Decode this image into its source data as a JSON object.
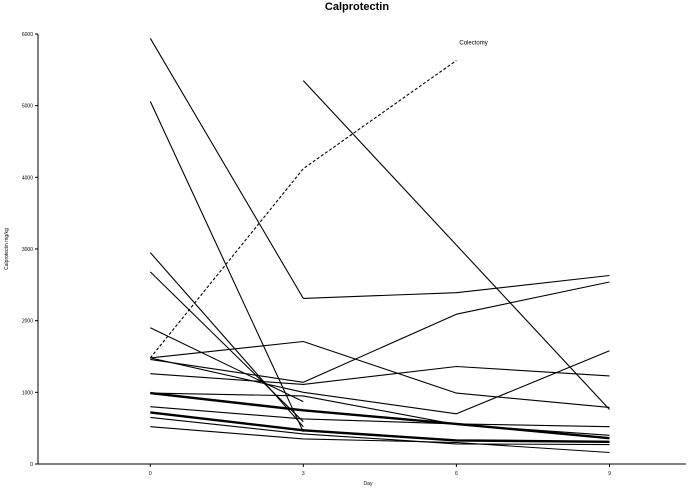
{
  "chart_data": {
    "type": "line",
    "title": "Calprotectin",
    "xlabel": "Day",
    "ylabel": "Calprotectin mg/kg",
    "x": [
      0,
      3,
      6,
      9
    ],
    "x_tick_labels": [
      "0",
      "3",
      "6",
      "9"
    ],
    "xlim": [
      -2.2,
      10.5
    ],
    "ylim": [
      0,
      6000
    ],
    "y_ticks": [
      0,
      1000,
      2000,
      3000,
      4000,
      5000,
      6000
    ],
    "y_tick_labels": [
      "0",
      "1000",
      "2000",
      "3000",
      "4000",
      "5000",
      "6000"
    ],
    "grid": false,
    "legend": "none",
    "line_color": "#000000",
    "annotations": [
      {
        "text": "Colectomy",
        "x": 6.0,
        "y": 5880
      }
    ],
    "series": [
      {
        "values": [
          5940,
          2310,
          null,
          null
        ],
        "dashed": false,
        "bold": false
      },
      {
        "values": [
          5060,
          450,
          null,
          null
        ],
        "dashed": false,
        "bold": false
      },
      {
        "values": [
          null,
          5350,
          null,
          760
        ],
        "dashed": false,
        "bold": false
      },
      {
        "values": [
          1480,
          4120,
          5630,
          null
        ],
        "dashed": true,
        "bold": false
      },
      {
        "values": [
          null,
          2310,
          2390,
          2630
        ],
        "dashed": false,
        "bold": false
      },
      {
        "values": [
          2950,
          520,
          null,
          null
        ],
        "dashed": false,
        "bold": false
      },
      {
        "values": [
          2680,
          590,
          null,
          null
        ],
        "dashed": false,
        "bold": false
      },
      {
        "values": [
          1900,
          870,
          null,
          null
        ],
        "dashed": false,
        "bold": false
      },
      {
        "values": [
          1480,
          1710,
          990,
          790
        ],
        "dashed": false,
        "bold": false
      },
      {
        "values": [
          1460,
          1140,
          2090,
          2540
        ],
        "dashed": false,
        "bold": false
      },
      {
        "values": [
          1260,
          1110,
          1360,
          1230
        ],
        "dashed": false,
        "bold": false
      },
      {
        "values": [
          1480,
          1000,
          700,
          1580
        ],
        "dashed": false,
        "bold": false
      },
      {
        "values": [
          990,
          950,
          550,
          400
        ],
        "dashed": false,
        "bold": false
      },
      {
        "values": [
          990,
          750,
          560,
          360
        ],
        "dashed": false,
        "bold": true
      },
      {
        "values": [
          800,
          630,
          560,
          520
        ],
        "dashed": false,
        "bold": false
      },
      {
        "values": [
          720,
          470,
          330,
          310
        ],
        "dashed": false,
        "bold": true
      },
      {
        "values": [
          650,
          420,
          280,
          270
        ],
        "dashed": false,
        "bold": false
      },
      {
        "values": [
          520,
          350,
          300,
          160
        ],
        "dashed": false,
        "bold": false
      }
    ]
  }
}
